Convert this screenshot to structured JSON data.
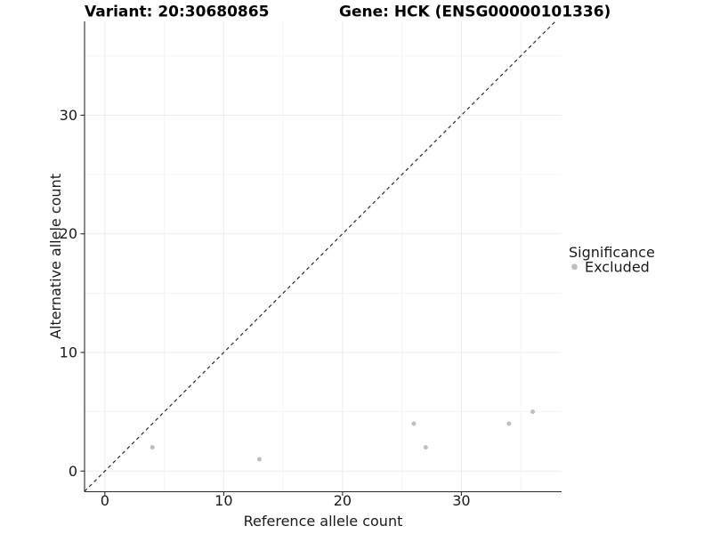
{
  "chart_data": {
    "type": "scatter",
    "title_left": "Variant: 20:30680865",
    "title_right": "Gene: HCK (ENSG00000101336)",
    "xlabel": "Reference allele count",
    "ylabel": "Alternative allele count",
    "x_ticks": [
      0,
      10,
      20,
      30
    ],
    "y_ticks": [
      0,
      10,
      20,
      30
    ],
    "x_minor_ticks": [
      5,
      15,
      25,
      35
    ],
    "y_minor_ticks": [
      5,
      15,
      25,
      35
    ],
    "xlim": [
      -1.71,
      38.43
    ],
    "ylim": [
      -1.74,
      37.91
    ],
    "grid": {
      "major_color": "#ebebeb",
      "minor_color": "#f4f4f4",
      "background": "#ffffff"
    },
    "identity_line": {
      "style": "dashed",
      "equation": "y = x",
      "color": "#222222"
    },
    "series": [
      {
        "name": "Excluded",
        "color": "#bebebe",
        "points": [
          [
            4,
            2
          ],
          [
            13,
            1
          ],
          [
            26,
            4
          ],
          [
            27,
            2
          ],
          [
            34,
            4
          ],
          [
            36,
            5
          ]
        ]
      }
    ],
    "legend": {
      "title": "Significance",
      "position": "right",
      "items": [
        {
          "label": "Excluded",
          "color": "#bebebe"
        }
      ]
    }
  }
}
